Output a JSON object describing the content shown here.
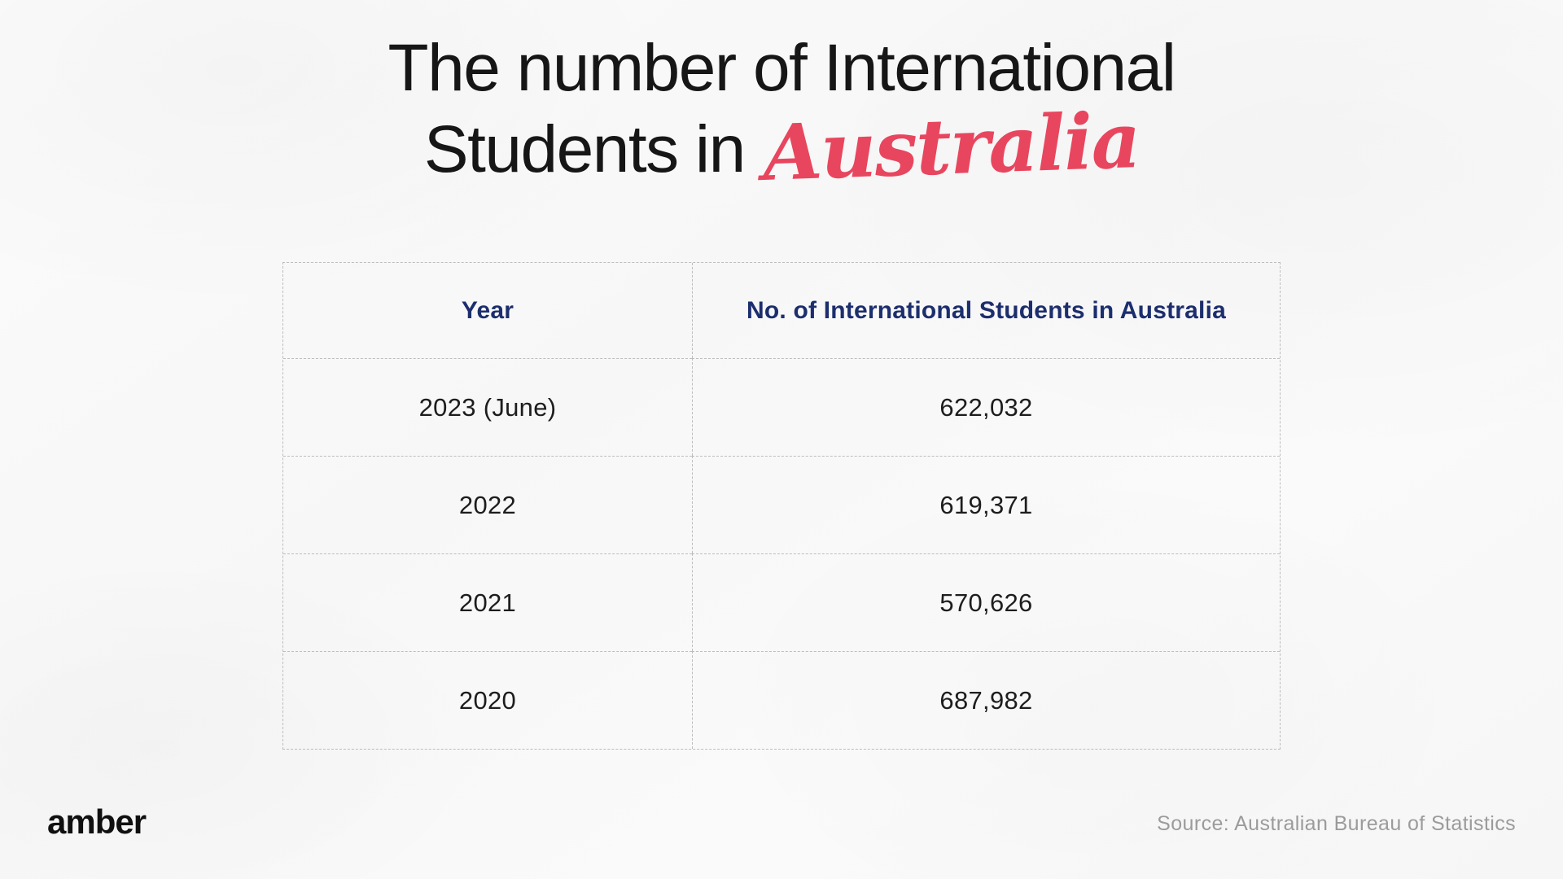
{
  "title": {
    "line1": "The number of International",
    "line2_prefix": "Students in",
    "line2_highlight": "Australia"
  },
  "table": {
    "headers": [
      "Year",
      "No. of International Students in Australia"
    ],
    "rows": [
      {
        "year": "2023 (June)",
        "students": "622,032"
      },
      {
        "year": "2022",
        "students": "619,371"
      },
      {
        "year": "2021",
        "students": "570,626"
      },
      {
        "year": "2020",
        "students": "687,982"
      }
    ]
  },
  "footer": {
    "logo": "amber",
    "source": "Source: Australian Bureau of Statistics"
  },
  "colors": {
    "accent_red": "#e8465e",
    "header_navy": "#1c2e6d",
    "text_dark": "#1d1d1d",
    "muted_gray": "#9b9b9b",
    "border_gray": "#bdbdbd",
    "background": "#f8f8f8"
  },
  "chart_data": {
    "type": "table",
    "title": "The number of International Students in Australia",
    "columns": [
      "Year",
      "No. of International Students in Australia"
    ],
    "rows": [
      [
        "2023 (June)",
        622032
      ],
      [
        "2022",
        619371
      ],
      [
        "2021",
        570626
      ],
      [
        "2020",
        687982
      ]
    ],
    "source": "Source: Australian Bureau of Statistics"
  }
}
